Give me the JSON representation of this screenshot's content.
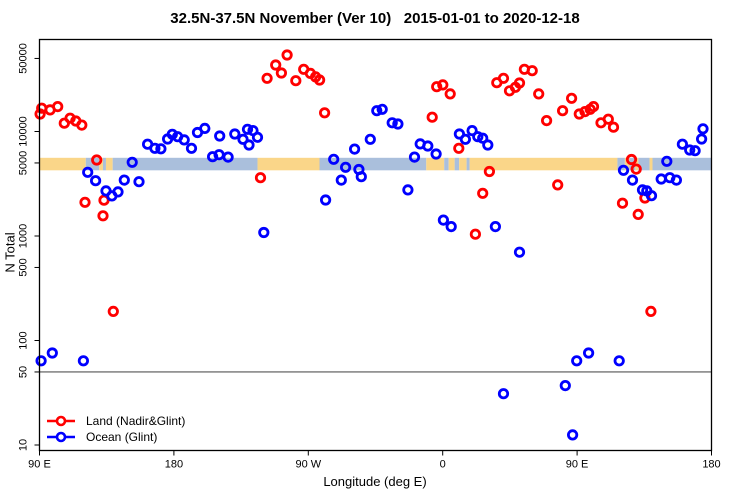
{
  "chart_data": {
    "type": "scatter",
    "title": "32.5N-37.5N November (Ver 10)   2015-01-01 to 2020-12-18",
    "xlabel": "Longitude (deg E)",
    "ylabel": "N Total",
    "x_axis": {
      "min": 90,
      "max": 540,
      "note": "longitude axis wraps: 90E eastward to 180",
      "ticks": [
        {
          "value": 90,
          "label": "90 E"
        },
        {
          "value": 180,
          "label": "180"
        },
        {
          "value": 270,
          "label": "90 W"
        },
        {
          "value": 360,
          "label": "0"
        },
        {
          "value": 450,
          "label": "90 E"
        },
        {
          "value": 540,
          "label": "180"
        }
      ]
    },
    "y_axis": {
      "scale": "log",
      "min": 8.86,
      "max": 75900,
      "ticks": [
        50000,
        10000,
        5000,
        1000,
        500,
        100,
        50,
        10
      ]
    },
    "grid": false,
    "legend_position": "bottom-left",
    "reference_line_y": 50,
    "reference_line_color": "#555555",
    "surface_band": {
      "center_value": 5000,
      "top_value": 5600,
      "bottom_value": 4250,
      "land_color": "#FAD689",
      "ocean_color": "#AABFDC",
      "segments": [
        {
          "from": 90,
          "to": 121,
          "type": "land"
        },
        {
          "from": 121,
          "to": 130,
          "type": "ocean"
        },
        {
          "from": 130,
          "to": 132.5,
          "type": "land"
        },
        {
          "from": 132.5,
          "to": 134.5,
          "type": "ocean"
        },
        {
          "from": 134.5,
          "to": 139,
          "type": "land"
        },
        {
          "from": 139,
          "to": 236,
          "type": "ocean"
        },
        {
          "from": 236,
          "to": 277.5,
          "type": "land"
        },
        {
          "from": 277.5,
          "to": 349,
          "type": "ocean"
        },
        {
          "from": 349,
          "to": 361,
          "type": "land"
        },
        {
          "from": 361,
          "to": 364,
          "type": "ocean"
        },
        {
          "from": 364,
          "to": 368,
          "type": "land"
        },
        {
          "from": 368,
          "to": 371,
          "type": "ocean"
        },
        {
          "from": 371,
          "to": 376,
          "type": "land"
        },
        {
          "from": 376,
          "to": 378,
          "type": "ocean"
        },
        {
          "from": 378,
          "to": 477,
          "type": "land"
        },
        {
          "from": 477,
          "to": 482,
          "type": "ocean"
        },
        {
          "from": 482,
          "to": 485,
          "type": "land"
        },
        {
          "from": 485,
          "to": 489,
          "type": "ocean"
        },
        {
          "from": 489,
          "to": 491,
          "type": "land"
        },
        {
          "from": 491,
          "to": 498.5,
          "type": "ocean"
        },
        {
          "from": 498.5,
          "to": 500.5,
          "type": "land"
        },
        {
          "from": 500.5,
          "to": 540,
          "type": "ocean"
        }
      ]
    },
    "series": [
      {
        "name": "Land (Nadir&Glint)",
        "color": "#FF0000",
        "points": [
          [
            90.4,
            14700
          ],
          [
            91.5,
            16700
          ],
          [
            97.1,
            16100
          ],
          [
            102.2,
            17300
          ],
          [
            106.6,
            12000
          ],
          [
            110.5,
            13400
          ],
          [
            114.3,
            12600
          ],
          [
            118.3,
            11500
          ],
          [
            120.5,
            2100
          ],
          [
            128.3,
            5330
          ],
          [
            132.5,
            1560
          ],
          [
            133.2,
            2200
          ],
          [
            139.4,
            190
          ],
          [
            238.0,
            3610
          ],
          [
            242.4,
            32300
          ],
          [
            248.2,
            43300
          ],
          [
            252.0,
            36300
          ],
          [
            255.8,
            54000
          ],
          [
            261.6,
            30600
          ],
          [
            266.9,
            39400
          ],
          [
            271.4,
            36000
          ],
          [
            274.9,
            33300
          ],
          [
            277.6,
            31100
          ],
          [
            280.9,
            15100
          ],
          [
            353.0,
            13700
          ],
          [
            356.0,
            26800
          ],
          [
            360.1,
            27900
          ],
          [
            365.0,
            22900
          ],
          [
            370.8,
            6900
          ],
          [
            381.9,
            1040
          ],
          [
            386.8,
            2560
          ],
          [
            391.3,
            4140
          ],
          [
            396.2,
            29300
          ],
          [
            400.7,
            32300
          ],
          [
            404.7,
            24500
          ],
          [
            408.7,
            26500
          ],
          [
            411.4,
            29100
          ],
          [
            414.7,
            39400
          ],
          [
            419.9,
            38200
          ],
          [
            424.3,
            22900
          ],
          [
            429.6,
            12700
          ],
          [
            437.0,
            3080
          ],
          [
            440.3,
            15800
          ],
          [
            446.3,
            20800
          ],
          [
            451.5,
            14700
          ],
          [
            455.3,
            15500
          ],
          [
            458.8,
            16300
          ],
          [
            461.0,
            17300
          ],
          [
            466.0,
            12100
          ],
          [
            470.9,
            13100
          ],
          [
            474.4,
            11000
          ],
          [
            480.4,
            2060
          ],
          [
            486.4,
            5400
          ],
          [
            489.6,
            4370
          ],
          [
            490.9,
            1610
          ],
          [
            495.4,
            2310
          ],
          [
            499.4,
            190
          ]
        ]
      },
      {
        "name": "Ocean (Glint)",
        "color": "#0000FF",
        "points": [
          [
            91.1,
            64
          ],
          [
            98.6,
            76
          ],
          [
            119.4,
            64
          ],
          [
            122.3,
            4070
          ],
          [
            127.6,
            3380
          ],
          [
            134.5,
            2700
          ],
          [
            138.5,
            2420
          ],
          [
            142.6,
            2640
          ],
          [
            146.8,
            3430
          ],
          [
            152.1,
            5070
          ],
          [
            156.6,
            3310
          ],
          [
            162.4,
            7560
          ],
          [
            167.3,
            6900
          ],
          [
            171.3,
            6830
          ],
          [
            175.8,
            8470
          ],
          [
            178.9,
            9400
          ],
          [
            182.5,
            8920
          ],
          [
            186.9,
            8300
          ],
          [
            191.8,
            6900
          ],
          [
            195.8,
            9770
          ],
          [
            200.7,
            10700
          ],
          [
            205.9,
            5740
          ],
          [
            210.3,
            6000
          ],
          [
            210.7,
            9050
          ],
          [
            216.3,
            5690
          ],
          [
            220.8,
            9460
          ],
          [
            226.3,
            8420
          ],
          [
            229.3,
            10500
          ],
          [
            230.3,
            7430
          ],
          [
            233.0,
            10200
          ],
          [
            236.0,
            8800
          ],
          [
            240.2,
            1080
          ],
          [
            281.6,
            2210
          ],
          [
            287.0,
            5420
          ],
          [
            292.1,
            3430
          ],
          [
            295.0,
            4540
          ],
          [
            301.0,
            6790
          ],
          [
            303.9,
            4330
          ],
          [
            305.5,
            3690
          ],
          [
            311.5,
            8420
          ],
          [
            315.9,
            15800
          ],
          [
            319.5,
            16300
          ],
          [
            326.2,
            12100
          ],
          [
            330.0,
            11800
          ],
          [
            336.7,
            2760
          ],
          [
            341.1,
            5690
          ],
          [
            344.9,
            7600
          ],
          [
            350.0,
            7270
          ],
          [
            355.6,
            6090
          ],
          [
            360.5,
            1420
          ],
          [
            365.7,
            1230
          ],
          [
            371.2,
            9460
          ],
          [
            375.2,
            8420
          ],
          [
            379.7,
            10200
          ],
          [
            383.5,
            8920
          ],
          [
            386.8,
            8620
          ],
          [
            390.2,
            7430
          ],
          [
            395.3,
            1230
          ],
          [
            400.7,
            31
          ],
          [
            411.4,
            700
          ],
          [
            442.1,
            37
          ],
          [
            447.0,
            12.5
          ],
          [
            449.7,
            64
          ],
          [
            457.7,
            76
          ],
          [
            478.2,
            64
          ],
          [
            481.1,
            4250
          ],
          [
            487.1,
            3430
          ],
          [
            493.8,
            2760
          ],
          [
            496.7,
            2700
          ],
          [
            499.8,
            2430
          ],
          [
            506.3,
            3510
          ],
          [
            510.1,
            5180
          ],
          [
            512.1,
            3610
          ],
          [
            516.5,
            3430
          ],
          [
            520.5,
            7560
          ],
          [
            525.4,
            6650
          ],
          [
            529.0,
            6550
          ],
          [
            533.4,
            8470
          ],
          [
            534.3,
            10600
          ]
        ]
      }
    ]
  }
}
